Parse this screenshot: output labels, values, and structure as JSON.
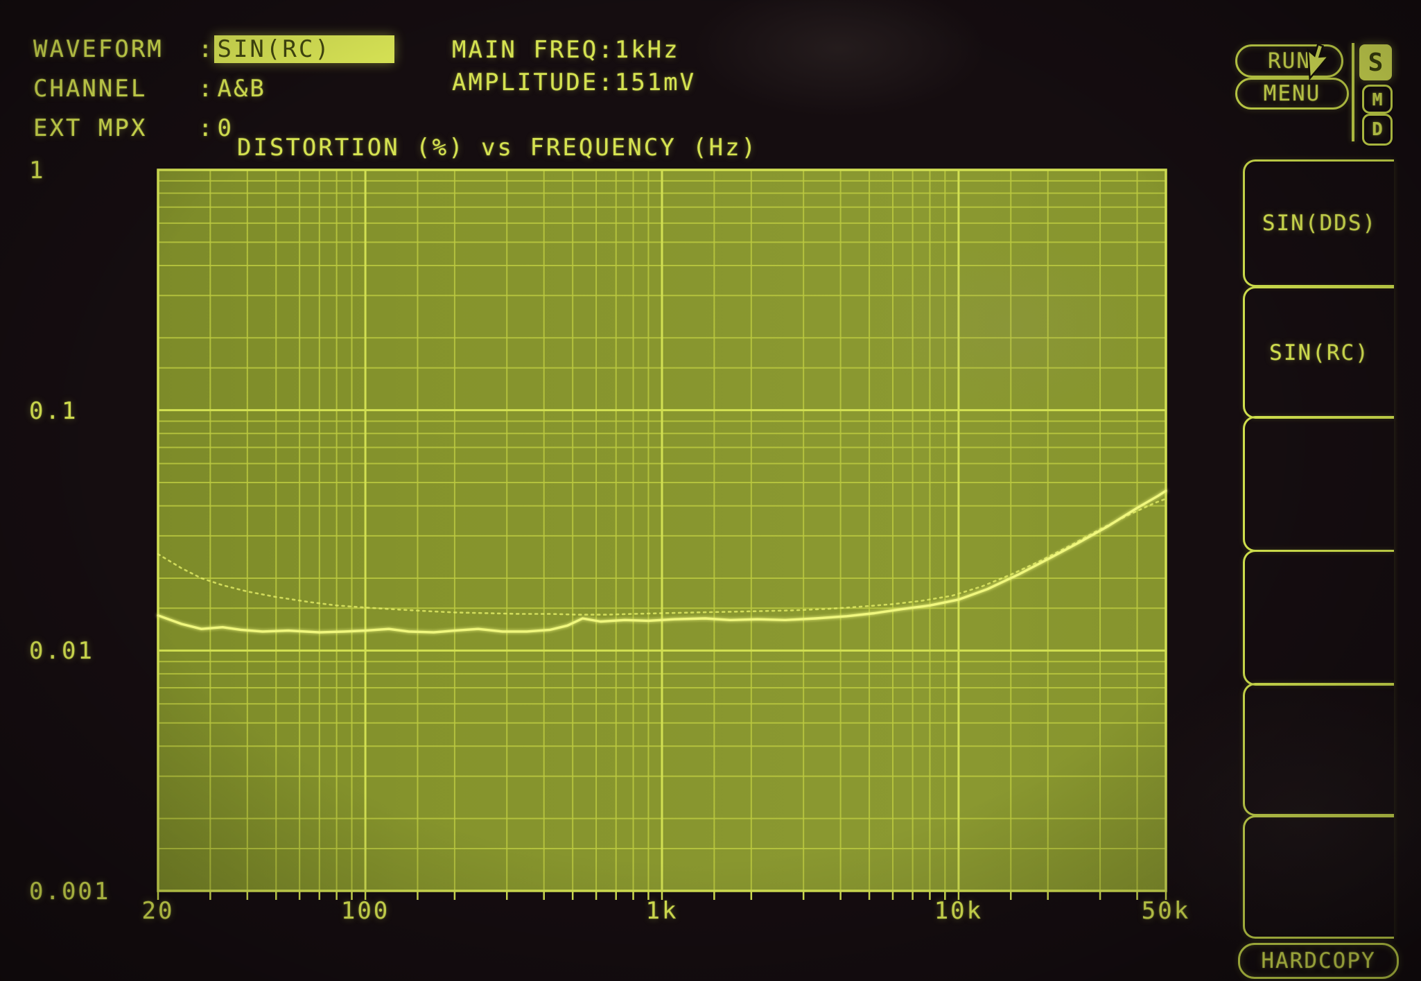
{
  "header": {
    "colon": ":",
    "rows": [
      {
        "label": "WAVEFORM",
        "value": "SIN(RC)",
        "highlighted": true
      },
      {
        "label": "CHANNEL",
        "value": "A&B",
        "highlighted": false
      },
      {
        "label": "EXT MPX",
        "value": "0",
        "highlighted": false
      }
    ]
  },
  "signal": {
    "rows": [
      {
        "label": "MAIN FREQ",
        "value": "1kHz"
      },
      {
        "label": "AMPLITUDE",
        "value": "151mV"
      }
    ]
  },
  "status": {
    "run_label": "RUN",
    "menu_label": "MENU",
    "badges": [
      {
        "letter": "S",
        "selected": true
      },
      {
        "letter": "M",
        "selected": false
      },
      {
        "letter": "D",
        "selected": false
      }
    ],
    "cursor_icon": "mouse-pointer"
  },
  "side_keys": {
    "keys": [
      {
        "label": "SIN(DDS)"
      },
      {
        "label": "SIN(RC)"
      },
      {
        "label": ""
      },
      {
        "label": ""
      },
      {
        "label": ""
      },
      {
        "label": ""
      }
    ],
    "hardcopy_label": "HARDCOPY"
  },
  "colors": {
    "phosphor": "#d6e351",
    "highlight_bg": "#d8e455",
    "plot_fill": "#85932c",
    "grid_minor": "#bcca40",
    "grid_major": "#d2e052",
    "trace_solid": "#f0f77e",
    "trace_dotted": "#e3ee66",
    "background": "#150d10"
  },
  "chart_data": {
    "type": "line",
    "title": "DISTORTION (%) vs FREQUENCY (Hz)",
    "xlabel": "FREQUENCY (Hz)",
    "ylabel": "DISTORTION (%)",
    "x_scale": "log",
    "y_scale": "log",
    "xlim": [
      20,
      50000
    ],
    "ylim": [
      0.001,
      1
    ],
    "grid": "log minor gridlines on, filled phosphor plot area",
    "legend_position": "none",
    "x_ticks": [
      {
        "value": 20,
        "label": "20"
      },
      {
        "value": 100,
        "label": "100"
      },
      {
        "value": 1000,
        "label": "1k"
      },
      {
        "value": 10000,
        "label": "10k"
      },
      {
        "value": 50000,
        "label": "50k"
      }
    ],
    "y_ticks": [
      {
        "value": 1,
        "label": "1"
      },
      {
        "value": 0.1,
        "label": "0.1"
      },
      {
        "value": 0.01,
        "label": "0.01"
      },
      {
        "value": 0.001,
        "label": "0.001"
      }
    ],
    "series": [
      {
        "name": "distortion-trace-solid",
        "style": "solid",
        "points": [
          [
            20,
            0.014
          ],
          [
            24,
            0.0129
          ],
          [
            28,
            0.0123
          ],
          [
            33,
            0.0125
          ],
          [
            38,
            0.0122
          ],
          [
            45,
            0.012
          ],
          [
            55,
            0.0121
          ],
          [
            70,
            0.0119
          ],
          [
            85,
            0.012
          ],
          [
            100,
            0.0121
          ],
          [
            120,
            0.0123
          ],
          [
            140,
            0.012
          ],
          [
            170,
            0.0119
          ],
          [
            200,
            0.0121
          ],
          [
            240,
            0.0123
          ],
          [
            290,
            0.012
          ],
          [
            350,
            0.012
          ],
          [
            420,
            0.0122
          ],
          [
            480,
            0.0127
          ],
          [
            540,
            0.0136
          ],
          [
            620,
            0.0132
          ],
          [
            750,
            0.0134
          ],
          [
            900,
            0.0133
          ],
          [
            1100,
            0.0135
          ],
          [
            1400,
            0.0136
          ],
          [
            1700,
            0.0134
          ],
          [
            2100,
            0.0135
          ],
          [
            2600,
            0.0134
          ],
          [
            3300,
            0.0136
          ],
          [
            4200,
            0.0139
          ],
          [
            5200,
            0.0143
          ],
          [
            6500,
            0.0149
          ],
          [
            8000,
            0.0154
          ],
          [
            10000,
            0.0163
          ],
          [
            12500,
            0.018
          ],
          [
            16000,
            0.0208
          ],
          [
            20000,
            0.024
          ],
          [
            25000,
            0.0278
          ],
          [
            32000,
            0.033
          ],
          [
            40000,
            0.0392
          ],
          [
            47000,
            0.044
          ],
          [
            50000,
            0.0462
          ]
        ]
      },
      {
        "name": "distortion-trace-dotted",
        "style": "dotted",
        "points": [
          [
            20,
            0.0252
          ],
          [
            24,
            0.022
          ],
          [
            28,
            0.02
          ],
          [
            33,
            0.0187
          ],
          [
            40,
            0.0176
          ],
          [
            50,
            0.0167
          ],
          [
            65,
            0.0159
          ],
          [
            80,
            0.0154
          ],
          [
            100,
            0.0151
          ],
          [
            130,
            0.0148
          ],
          [
            160,
            0.0146
          ],
          [
            200,
            0.0144
          ],
          [
            260,
            0.0143
          ],
          [
            330,
            0.0142
          ],
          [
            420,
            0.0142
          ],
          [
            520,
            0.0141
          ],
          [
            650,
            0.0141
          ],
          [
            800,
            0.0142
          ],
          [
            1000,
            0.0143
          ],
          [
            1300,
            0.0144
          ],
          [
            1700,
            0.0145
          ],
          [
            2200,
            0.0146
          ],
          [
            2800,
            0.0147
          ],
          [
            3600,
            0.0149
          ],
          [
            4600,
            0.0152
          ],
          [
            6000,
            0.0156
          ],
          [
            7500,
            0.0161
          ],
          [
            9500,
            0.0169
          ],
          [
            12000,
            0.0185
          ],
          [
            15000,
            0.0207
          ],
          [
            19000,
            0.0237
          ],
          [
            24000,
            0.0275
          ],
          [
            30000,
            0.032
          ],
          [
            38000,
            0.037
          ],
          [
            46000,
            0.0412
          ],
          [
            50000,
            0.0428
          ]
        ]
      }
    ]
  }
}
